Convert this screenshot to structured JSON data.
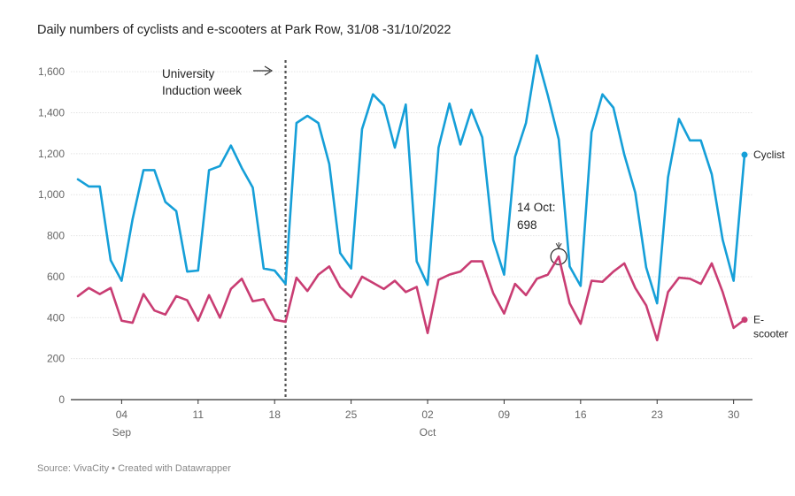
{
  "title": "Daily numbers of cyclists and e-scooters at Park Row, 31/08 -31/10/2022",
  "footer": "Source: VivaCity • Created with Datawrapper",
  "chart_data": {
    "type": "line",
    "title": "Daily numbers of cyclists and e-scooters at Park Row, 31/08 -31/10/2022",
    "x_start": "2022-08-31",
    "x_end": "2022-10-31",
    "ylim": [
      0,
      1700
    ],
    "y_ticks": [
      0,
      200,
      400,
      600,
      800,
      1000,
      1200,
      1400,
      1600
    ],
    "y_tick_labels": [
      "0",
      "200",
      "400",
      "600",
      "800",
      "1,000",
      "1,200",
      "1,400",
      "1,600"
    ],
    "x_ticks": [
      {
        "date": "2022-09-04",
        "label": "04",
        "sublabel": "Sep"
      },
      {
        "date": "2022-09-11",
        "label": "11",
        "sublabel": ""
      },
      {
        "date": "2022-09-18",
        "label": "18",
        "sublabel": ""
      },
      {
        "date": "2022-09-25",
        "label": "25",
        "sublabel": ""
      },
      {
        "date": "2022-10-02",
        "label": "02",
        "sublabel": "Oct"
      },
      {
        "date": "2022-10-09",
        "label": "09",
        "sublabel": ""
      },
      {
        "date": "2022-10-16",
        "label": "16",
        "sublabel": ""
      },
      {
        "date": "2022-10-23",
        "label": "23",
        "sublabel": ""
      },
      {
        "date": "2022-10-30",
        "label": "30",
        "sublabel": ""
      }
    ],
    "grid": true,
    "series": [
      {
        "name": "Cyclist",
        "color": "#159fd8",
        "values": [
          1075,
          1040,
          1040,
          680,
          580,
          880,
          1120,
          1120,
          965,
          920,
          625,
          630,
          1120,
          1140,
          1240,
          1130,
          1035,
          640,
          630,
          565,
          1350,
          1385,
          1350,
          1150,
          715,
          640,
          1320,
          1490,
          1435,
          1230,
          1440,
          675,
          560,
          1230,
          1445,
          1245,
          1415,
          1280,
          780,
          610,
          1185,
          1350,
          1680,
          1485,
          1270,
          650,
          555,
          1305,
          1490,
          1425,
          1195,
          1010,
          645,
          470,
          1085,
          1370,
          1265,
          1265,
          1100,
          780,
          580,
          1195
        ]
      },
      {
        "name": "E-scooter",
        "color": "#c93d73",
        "values": [
          505,
          545,
          515,
          545,
          385,
          375,
          515,
          435,
          415,
          505,
          485,
          385,
          510,
          400,
          540,
          590,
          480,
          490,
          390,
          380,
          595,
          530,
          610,
          650,
          550,
          500,
          600,
          570,
          540,
          580,
          525,
          550,
          325,
          585,
          610,
          625,
          675,
          675,
          520,
          420,
          565,
          510,
          590,
          610,
          698,
          470,
          370,
          580,
          575,
          625,
          665,
          545,
          460,
          290,
          525,
          595,
          590,
          565,
          665,
          525,
          350,
          390
        ]
      }
    ],
    "annotations": [
      {
        "text_lines": [
          "University",
          "Induction week"
        ],
        "date": "2022-09-19",
        "kind": "vertical-dashed-line"
      },
      {
        "text_lines": [
          "14 Oct:",
          "698"
        ],
        "date": "2022-10-14",
        "value": 698,
        "series": "E-scooter"
      }
    ],
    "legend": "direct-labels-right",
    "legend_labels": [
      {
        "series": "Cyclist",
        "lines": [
          "Cyclist"
        ]
      },
      {
        "series": "E-scooter",
        "lines": [
          "E-",
          "scooter"
        ]
      }
    ]
  }
}
